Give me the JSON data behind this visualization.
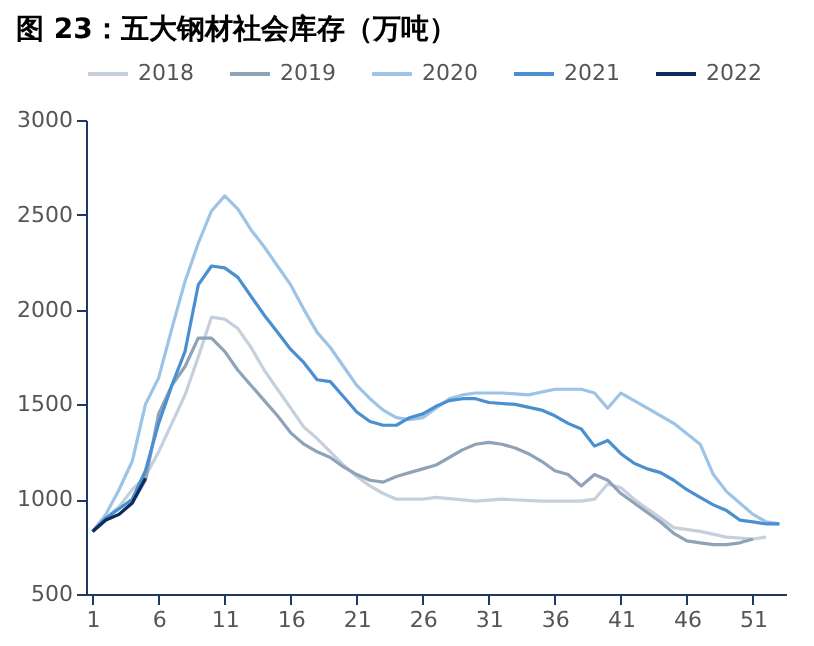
{
  "chart_data": {
    "type": "line",
    "title": "图 23：五大钢材社会库存（万吨）",
    "xlim": [
      0.5,
      53.5
    ],
    "xticks": [
      1,
      6,
      11,
      16,
      21,
      26,
      31,
      36,
      41,
      46,
      51
    ],
    "ylim": [
      500,
      3000
    ],
    "yticks": [
      500,
      1000,
      1500,
      2000,
      2500,
      3000
    ],
    "grid": false,
    "legend": "top",
    "marker": "none",
    "line_style": "solid",
    "series": [
      {
        "name": "2018",
        "color": "#c5d0dc",
        "x": [
          1,
          2,
          3,
          4,
          5,
          6,
          7,
          8,
          9,
          10,
          11,
          12,
          13,
          14,
          15,
          16,
          17,
          18,
          19,
          20,
          21,
          22,
          23,
          24,
          25,
          26,
          27,
          30,
          32,
          35,
          38,
          39,
          40,
          41,
          42,
          43,
          44,
          45,
          47,
          49,
          51,
          52
        ],
        "values": [
          830,
          900,
          960,
          1050,
          1120,
          1250,
          1400,
          1550,
          1750,
          1960,
          1950,
          1900,
          1800,
          1680,
          1580,
          1480,
          1380,
          1320,
          1250,
          1180,
          1120,
          1070,
          1030,
          1000,
          1000,
          1000,
          1010,
          990,
          1000,
          990,
          990,
          1000,
          1080,
          1060,
          1000,
          950,
          900,
          850,
          830,
          800,
          790,
          800
        ]
      },
      {
        "name": "2019",
        "color": "#8fa3b8",
        "x": [
          1,
          2,
          3,
          4,
          5,
          6,
          7,
          8,
          9,
          10,
          11,
          12,
          13,
          14,
          15,
          16,
          17,
          18,
          19,
          20,
          21,
          22,
          23,
          24,
          25,
          26,
          27,
          28,
          29,
          30,
          31,
          32,
          33,
          34,
          35,
          36,
          37,
          38,
          39,
          40,
          41,
          42,
          43,
          44,
          45,
          46,
          47,
          48,
          49,
          50,
          51
        ],
        "values": [
          830,
          890,
          920,
          980,
          1100,
          1450,
          1600,
          1700,
          1850,
          1850,
          1780,
          1680,
          1600,
          1520,
          1440,
          1350,
          1290,
          1250,
          1220,
          1170,
          1130,
          1100,
          1090,
          1120,
          1140,
          1160,
          1180,
          1220,
          1260,
          1290,
          1300,
          1290,
          1270,
          1240,
          1200,
          1150,
          1130,
          1070,
          1130,
          1100,
          1030,
          980,
          930,
          880,
          820,
          780,
          770,
          760,
          760,
          770,
          790
        ]
      },
      {
        "name": "2020",
        "color": "#9dc3e6",
        "x": [
          1,
          2,
          3,
          4,
          5,
          6,
          7,
          8,
          9,
          10,
          11,
          12,
          13,
          14,
          15,
          16,
          17,
          18,
          19,
          20,
          21,
          22,
          23,
          24,
          25,
          26,
          27,
          28,
          29,
          30,
          32,
          34,
          36,
          38,
          39,
          40,
          41,
          43,
          45,
          47,
          48,
          49,
          50,
          51,
          52,
          53
        ],
        "values": [
          830,
          920,
          1050,
          1200,
          1500,
          1640,
          1900,
          2150,
          2350,
          2520,
          2600,
          2530,
          2420,
          2330,
          2230,
          2130,
          2000,
          1880,
          1800,
          1700,
          1600,
          1530,
          1470,
          1430,
          1420,
          1430,
          1480,
          1530,
          1550,
          1560,
          1560,
          1550,
          1580,
          1580,
          1560,
          1480,
          1560,
          1480,
          1400,
          1290,
          1130,
          1040,
          980,
          920,
          880,
          870
        ]
      },
      {
        "name": "2021",
        "color": "#4a8fd0",
        "x": [
          1,
          2,
          3,
          4,
          5,
          6,
          7,
          8,
          9,
          10,
          11,
          12,
          13,
          14,
          15,
          16,
          17,
          18,
          19,
          20,
          21,
          22,
          23,
          24,
          25,
          26,
          27,
          28,
          29,
          30,
          31,
          33,
          35,
          36,
          37,
          38,
          39,
          40,
          41,
          42,
          43,
          44,
          45,
          46,
          47,
          48,
          49,
          50,
          51,
          52,
          53
        ],
        "values": [
          830,
          900,
          950,
          1000,
          1150,
          1400,
          1600,
          1780,
          2130,
          2230,
          2220,
          2170,
          2070,
          1970,
          1880,
          1790,
          1720,
          1630,
          1620,
          1540,
          1460,
          1410,
          1390,
          1390,
          1430,
          1450,
          1490,
          1520,
          1530,
          1530,
          1510,
          1500,
          1470,
          1440,
          1400,
          1370,
          1280,
          1310,
          1240,
          1190,
          1160,
          1140,
          1100,
          1050,
          1010,
          970,
          940,
          890,
          880,
          870,
          870
        ]
      },
      {
        "name": "2022",
        "color": "#0f2b5b",
        "x": [
          1,
          2,
          3,
          4,
          5
        ],
        "values": [
          830,
          890,
          920,
          980,
          1110
        ]
      }
    ]
  }
}
